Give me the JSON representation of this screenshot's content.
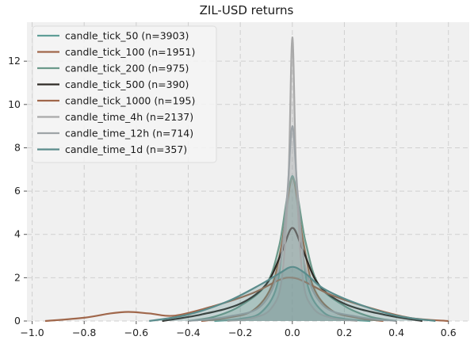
{
  "chart_data": {
    "type": "area",
    "title": "ZIL-USD returns",
    "xlabel": "",
    "ylabel": "",
    "xlim": [
      -1.02,
      0.68
    ],
    "ylim": [
      0,
      13.8
    ],
    "xticks": [
      -1.0,
      -0.8,
      -0.6,
      -0.4,
      -0.2,
      0.0,
      0.2,
      0.4,
      0.6
    ],
    "xtick_labels": [
      "−1.0",
      "−0.8",
      "−0.6",
      "−0.4",
      "−0.2",
      "0.0",
      "0.2",
      "0.4",
      "0.6"
    ],
    "yticks": [
      0,
      2,
      4,
      6,
      8,
      10,
      12
    ],
    "ytick_labels": [
      "0",
      "2",
      "4",
      "6",
      "8",
      "10",
      "12"
    ],
    "grid": true,
    "legend_position": "top-left",
    "series": [
      {
        "name": "candle_tick_50 (n=3903)",
        "color": "#5f9e97",
        "fill": true,
        "x": [
          -0.3,
          -0.2,
          -0.12,
          -0.06,
          -0.03,
          0.0,
          0.03,
          0.06,
          0.12,
          0.2,
          0.3
        ],
        "y": [
          0.0,
          0.1,
          0.4,
          1.6,
          4.3,
          6.7,
          4.4,
          1.6,
          0.4,
          0.1,
          0.0
        ]
      },
      {
        "name": "candle_tick_100 (n=1951)",
        "color": "#a0674b",
        "fill": false,
        "x": [
          -0.35,
          -0.25,
          -0.15,
          -0.08,
          -0.04,
          0.0,
          0.04,
          0.08,
          0.15,
          0.25,
          0.35
        ],
        "y": [
          0.0,
          0.15,
          0.5,
          1.6,
          3.6,
          6.6,
          3.8,
          1.6,
          0.5,
          0.15,
          0.0
        ]
      },
      {
        "name": "candle_tick_200 (n=975)",
        "color": "#6c9a8b",
        "fill": true,
        "x": [
          -0.4,
          -0.3,
          -0.2,
          -0.1,
          -0.05,
          0.0,
          0.05,
          0.1,
          0.2,
          0.3,
          0.4
        ],
        "y": [
          0.0,
          0.2,
          0.7,
          1.7,
          3.5,
          6.6,
          3.7,
          1.7,
          0.7,
          0.2,
          0.0
        ]
      },
      {
        "name": "candle_tick_500 (n=390)",
        "color": "#2e2a26",
        "fill": false,
        "x": [
          -0.5,
          -0.35,
          -0.2,
          -0.1,
          -0.04,
          0.0,
          0.04,
          0.1,
          0.2,
          0.35,
          0.5
        ],
        "y": [
          0.0,
          0.3,
          0.8,
          1.7,
          3.2,
          4.3,
          3.3,
          1.7,
          0.8,
          0.3,
          0.0
        ]
      },
      {
        "name": "candle_tick_1000 (n=195)",
        "color": "#a0674b",
        "fill": false,
        "x": [
          -0.95,
          -0.8,
          -0.7,
          -0.63,
          -0.55,
          -0.45,
          -0.3,
          -0.15,
          -0.05,
          0.0,
          0.05,
          0.15,
          0.3,
          0.45,
          0.6
        ],
        "y": [
          0.0,
          0.15,
          0.35,
          0.42,
          0.35,
          0.25,
          0.7,
          1.3,
          1.9,
          2.0,
          1.8,
          1.2,
          0.6,
          0.15,
          0.0
        ]
      },
      {
        "name": "candle_time_4h (n=2137)",
        "color": "#a9a9a9",
        "fill": true,
        "x": [
          -0.25,
          -0.15,
          -0.08,
          -0.04,
          -0.015,
          0.0,
          0.015,
          0.04,
          0.08,
          0.15,
          0.25
        ],
        "y": [
          0.0,
          0.15,
          0.6,
          2.0,
          6.5,
          13.1,
          6.8,
          2.0,
          0.6,
          0.15,
          0.0
        ]
      },
      {
        "name": "candle_time_12h (n=714)",
        "color": "#9ea4a8",
        "fill": true,
        "x": [
          -0.4,
          -0.25,
          -0.12,
          -0.05,
          -0.02,
          0.0,
          0.02,
          0.05,
          0.12,
          0.25,
          0.4
        ],
        "y": [
          0.0,
          0.2,
          0.7,
          2.5,
          5.8,
          9.0,
          6.0,
          2.5,
          0.7,
          0.2,
          0.0
        ]
      },
      {
        "name": "candle_time_1d (n=357)",
        "color": "#5a8c8c",
        "fill": true,
        "x": [
          -0.55,
          -0.4,
          -0.25,
          -0.12,
          -0.05,
          0.0,
          0.05,
          0.12,
          0.25,
          0.4,
          0.55
        ],
        "y": [
          0.0,
          0.3,
          0.9,
          1.7,
          2.2,
          2.5,
          2.2,
          1.5,
          0.8,
          0.25,
          0.0
        ]
      }
    ]
  }
}
